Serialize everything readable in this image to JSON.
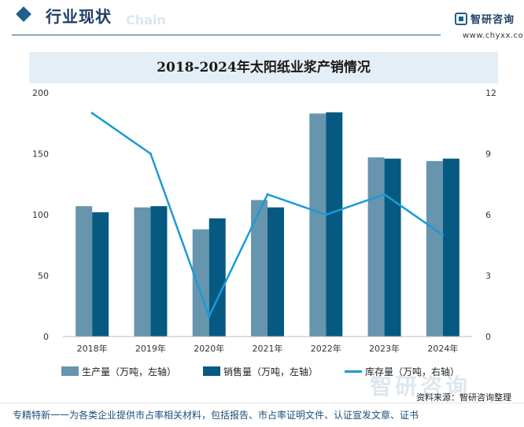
{
  "header": {
    "title": "行业现状",
    "ghost_text": "Chain",
    "brand_name": "智研咨询",
    "brand_url": "www.chyxx.com"
  },
  "chart_data": {
    "type": "bar",
    "title": "2018-2024年太阳纸业浆产销情况",
    "categories": [
      "2018年",
      "2019年",
      "2020年",
      "2021年",
      "2022年",
      "2023年",
      "2024年"
    ],
    "series": [
      {
        "name": "生产量（万吨，左轴）",
        "kind": "bar",
        "axis": "left",
        "color": "#6795ad",
        "values": [
          107,
          106,
          88,
          112,
          183,
          147,
          144
        ]
      },
      {
        "name": "销售量（万吨，左轴）",
        "kind": "bar",
        "axis": "left",
        "color": "#065a82",
        "values": [
          102,
          107,
          97,
          106,
          184,
          146,
          146
        ]
      },
      {
        "name": "库存量（万吨，右轴）",
        "kind": "line",
        "axis": "right",
        "color": "#1b9ad6",
        "values": [
          11,
          9,
          1,
          7,
          6,
          7,
          5
        ]
      }
    ],
    "y_left": {
      "min": 0,
      "max": 200,
      "ticks": [
        0,
        50,
        100,
        150,
        200
      ]
    },
    "y_right": {
      "min": 0,
      "max": 12,
      "ticks": [
        0,
        3,
        6,
        9,
        12
      ]
    },
    "grid": false,
    "legend": "bottom"
  },
  "source": "资料来源：智研咨询整理",
  "watermark": "智研咨询",
  "footer": "专精特新一一为各类企业提供市占率相关材料，包括报告、市占率证明文件、认证宣发文章、证书"
}
